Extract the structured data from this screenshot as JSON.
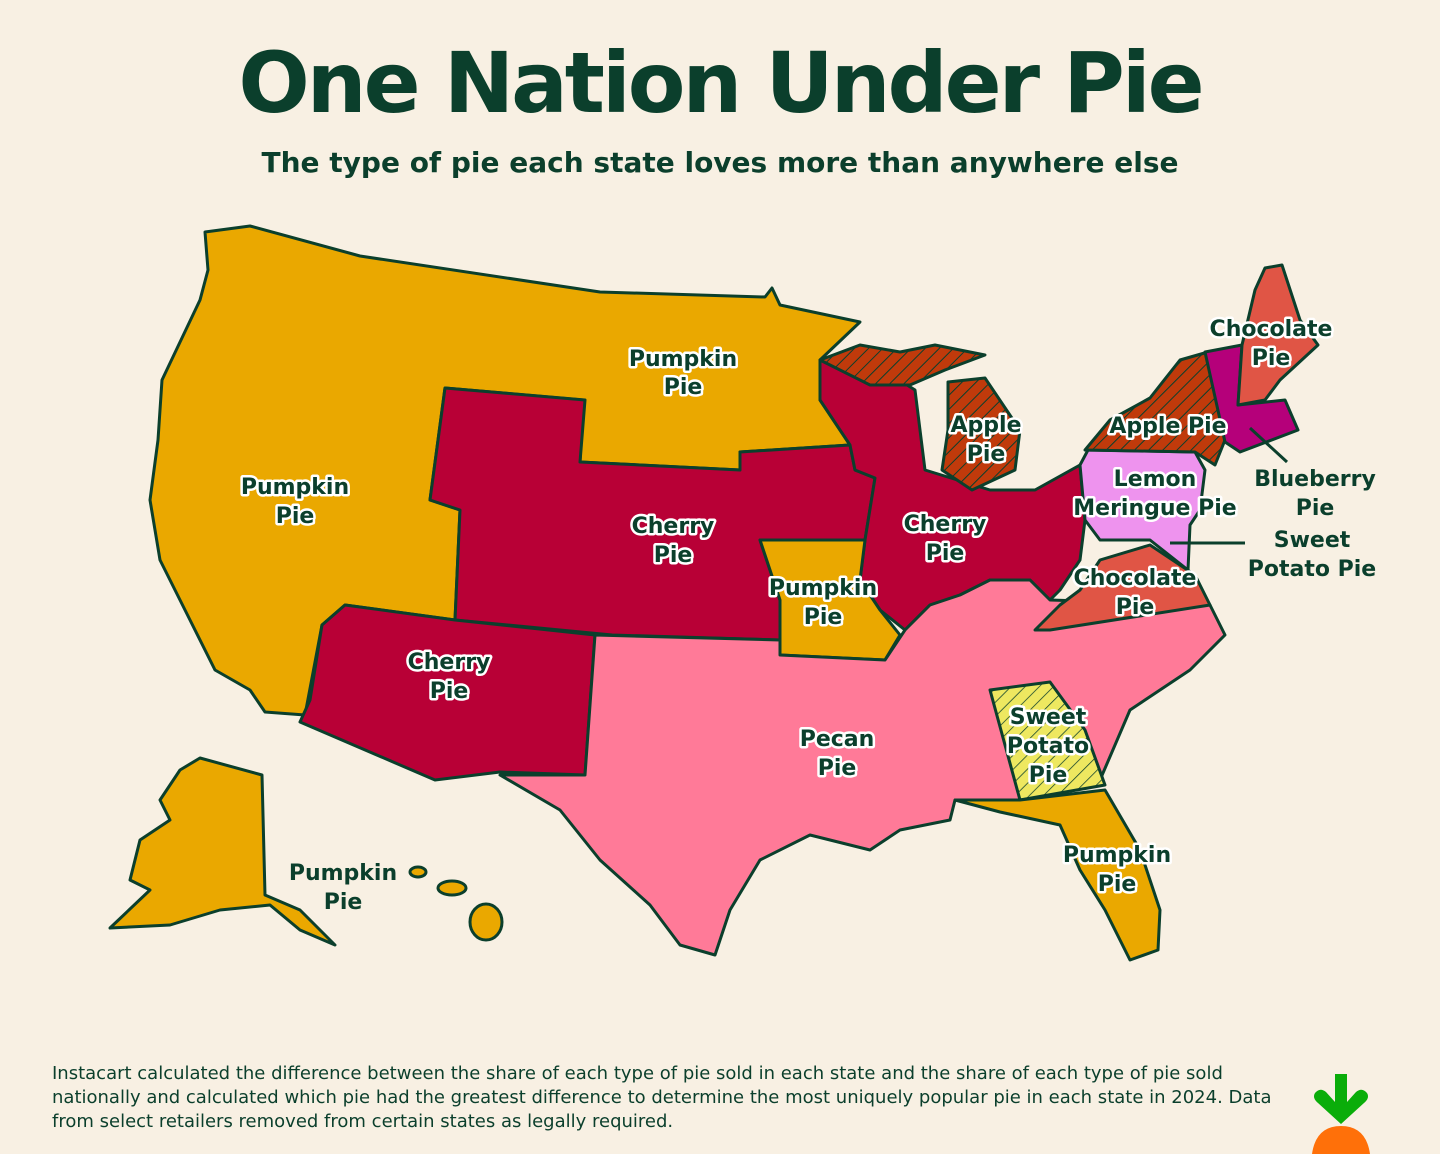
{
  "title": "One Nation Under Pie",
  "subtitle": "The type of pie each state loves more than anywhere else",
  "colors": {
    "background": "#f8f0e3",
    "text": "#0b3f2c",
    "pumpkin_pie": "#eaa800",
    "cherry_pie": "#b80036",
    "pecan_pie": "#ff7a98",
    "chocolate_pie": "#e05545",
    "apple_pie": "#c03a0b",
    "blueberry_pie": "#b5007a",
    "lemon_meringue_pie": "#ee93ee",
    "sweet_potato_pie": "#eee860"
  },
  "labels": {
    "west_pumpkin": [
      "Pumpkin",
      "Pie"
    ],
    "north_pumpkin": [
      "Pumpkin",
      "Pie"
    ],
    "missouri_pumpkin": [
      "Pumpkin",
      "Pie"
    ],
    "alaska_pumpkin": [
      "Pumpkin",
      "Pie"
    ],
    "florida_pumpkin": [
      "Pumpkin",
      "Pie"
    ],
    "plains_cherry": [
      "Cherry",
      "Pie"
    ],
    "southwest_cherry": [
      "Cherry",
      "Pie"
    ],
    "midwest_cherry": [
      "Cherry",
      "Pie"
    ],
    "south_pecan": [
      "Pecan",
      "Pie"
    ],
    "michigan_apple": [
      "Apple",
      "Pie"
    ],
    "newyork_apple": "Apple Pie",
    "maine_chocolate": [
      "Chocolate",
      "Pie"
    ],
    "virginia_chocolate": [
      "Chocolate",
      "Pie"
    ],
    "penn_lemon": [
      "Lemon",
      "Meringue Pie"
    ],
    "blueberry": [
      "Blueberry",
      "Pie"
    ],
    "maryland_sweet_potato": [
      "Sweet",
      "Potato Pie"
    ],
    "georgia_sweet_potato": [
      "Sweet",
      "Potato",
      "Pie"
    ]
  },
  "footnote": "Instacart calculated the difference between the share of each type of pie sold in each state and the share of each type of pie sold nationally and calculated which pie had the greatest difference to determine the most uniquely popular pie in each state in 2024. Data from select retailers removed from certain states as legally required.",
  "logo": "instacart-carrot-logo"
}
